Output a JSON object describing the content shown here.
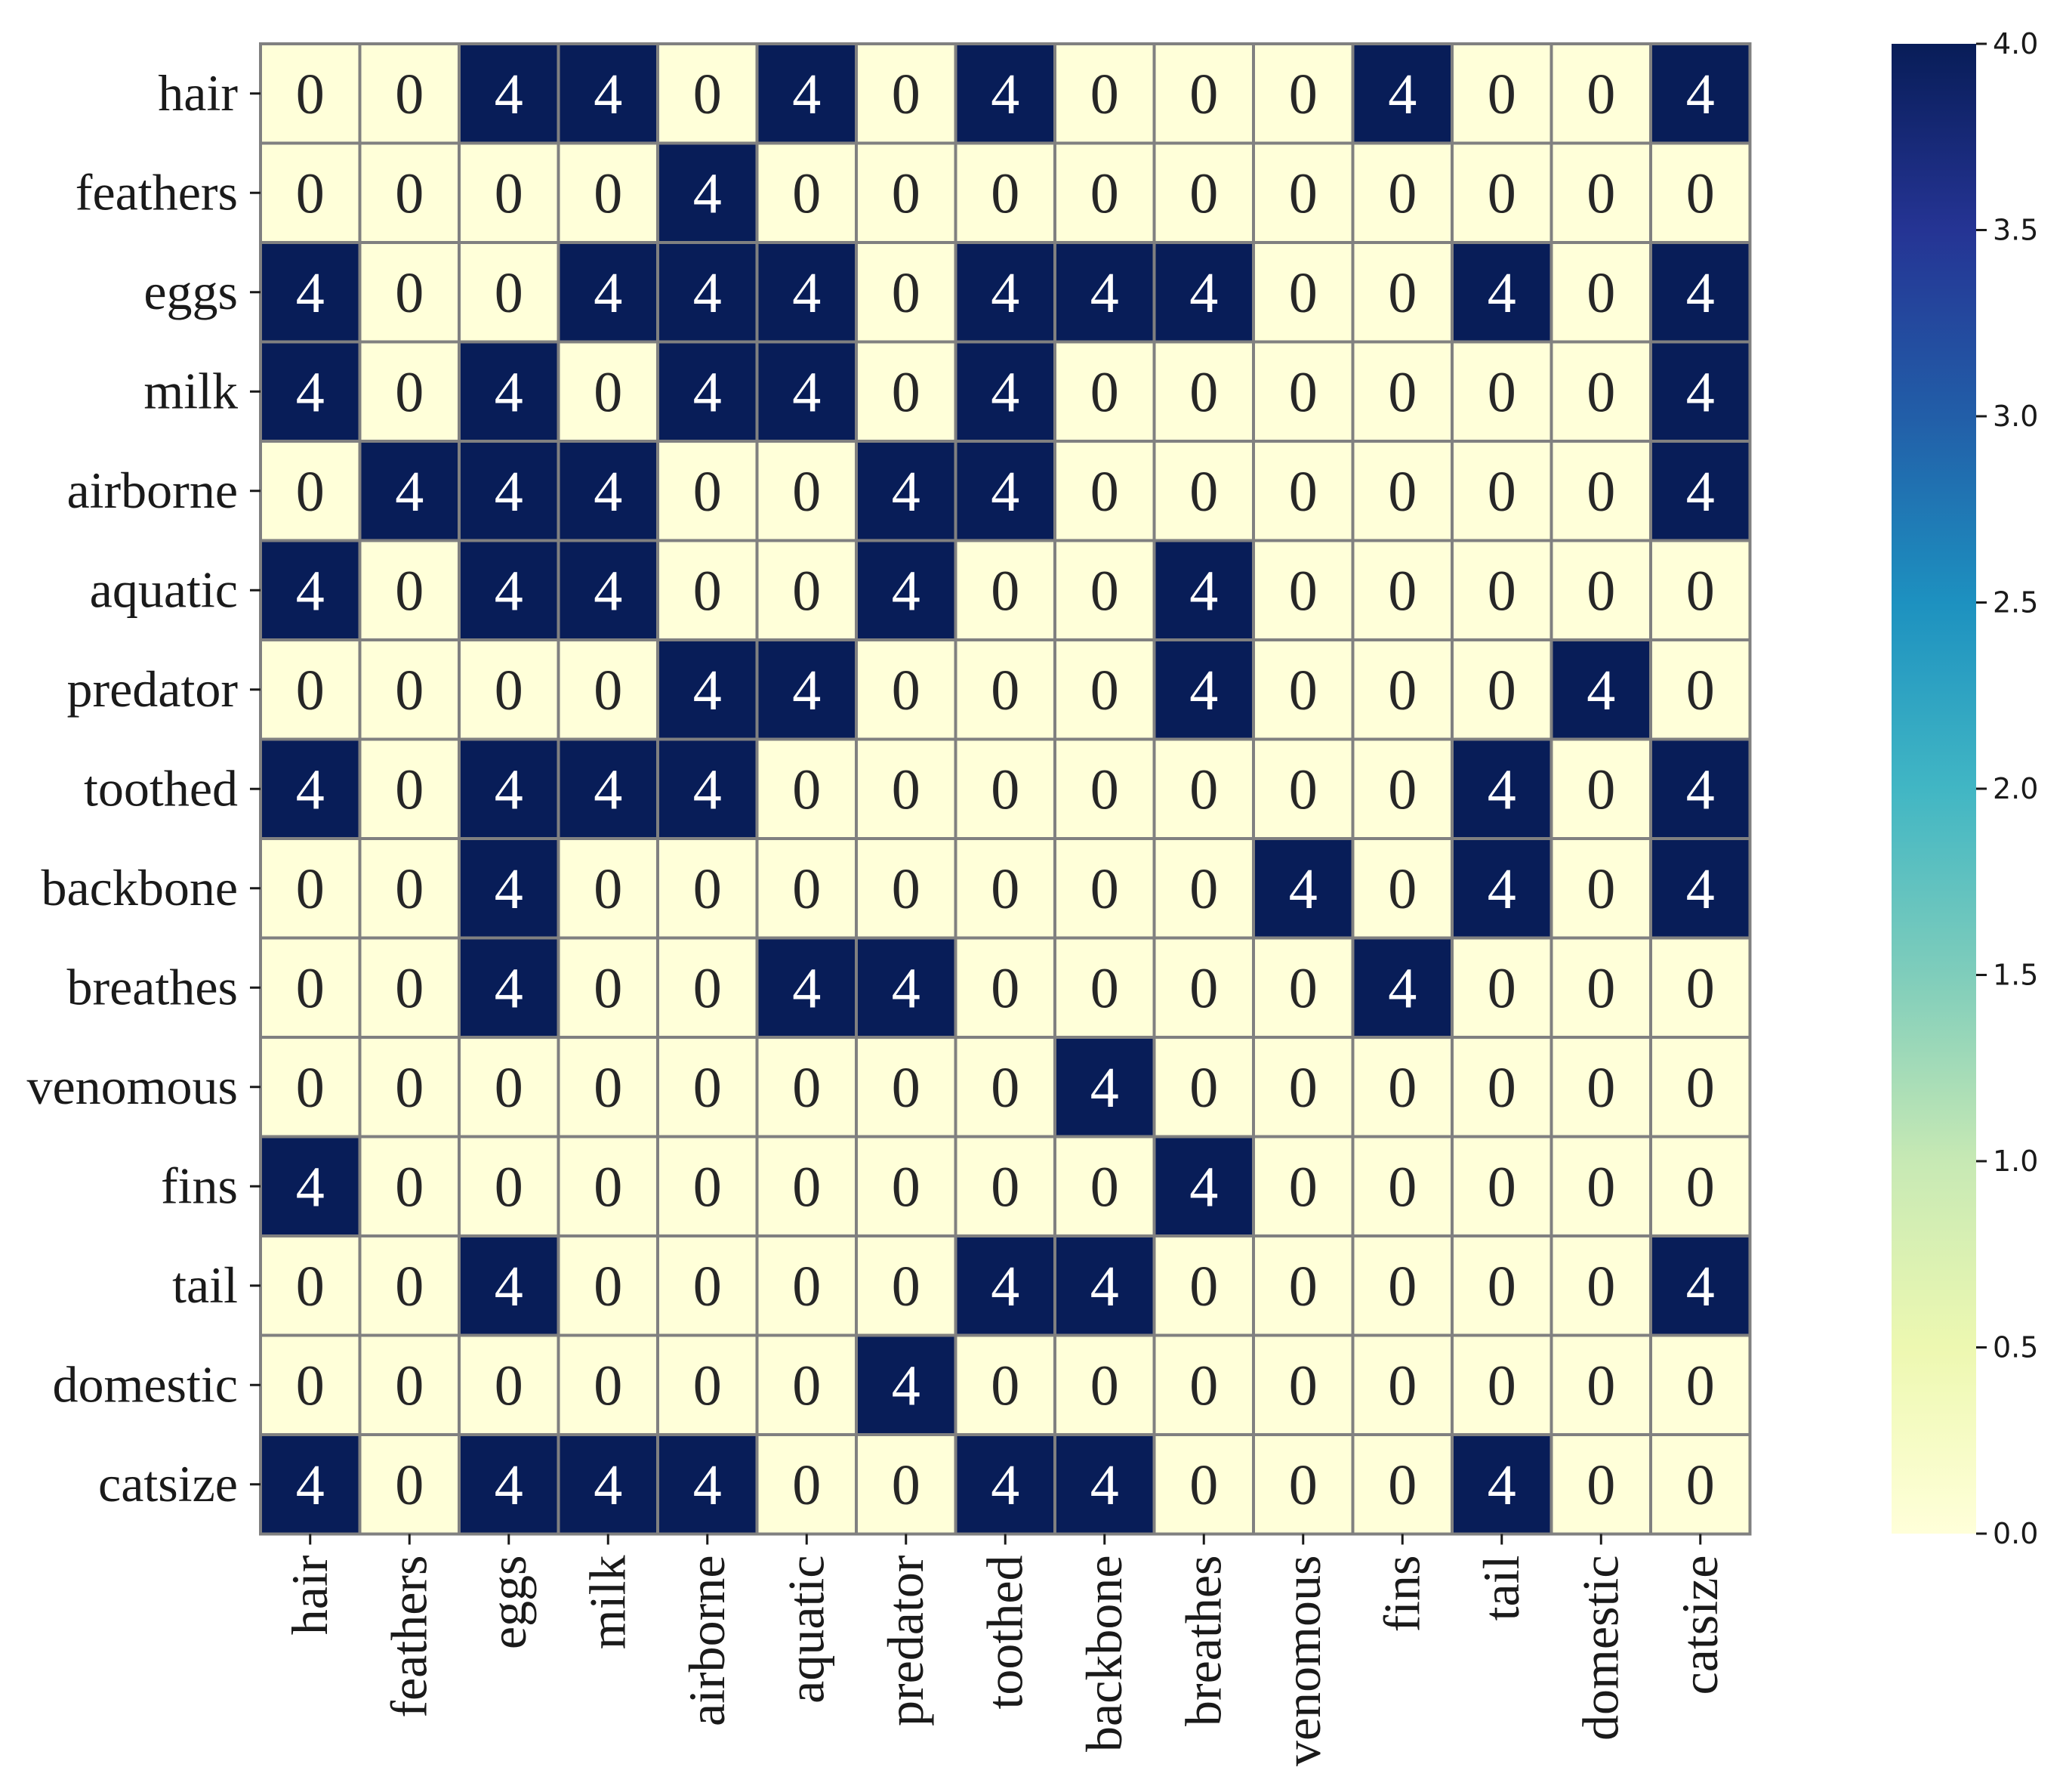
{
  "chart_data": {
    "type": "heatmap",
    "title": "",
    "xlabel": "",
    "ylabel": "",
    "rows": [
      "hair",
      "feathers",
      "eggs",
      "milk",
      "airborne",
      "aquatic",
      "predator",
      "toothed",
      "backbone",
      "breathes",
      "venomous",
      "fins",
      "tail",
      "domestic",
      "catsize"
    ],
    "columns": [
      "hair",
      "feathers",
      "eggs",
      "milk",
      "airborne",
      "aquatic",
      "predator",
      "toothed",
      "backbone",
      "breathes",
      "venomous",
      "fins",
      "tail",
      "domestic",
      "catsize"
    ],
    "values": [
      [
        0,
        0,
        4,
        4,
        0,
        4,
        0,
        4,
        0,
        0,
        0,
        4,
        0,
        0,
        4
      ],
      [
        0,
        0,
        0,
        0,
        4,
        0,
        0,
        0,
        0,
        0,
        0,
        0,
        0,
        0,
        0
      ],
      [
        4,
        0,
        0,
        4,
        4,
        4,
        0,
        4,
        4,
        4,
        0,
        0,
        4,
        0,
        4
      ],
      [
        4,
        0,
        4,
        0,
        4,
        4,
        0,
        4,
        0,
        0,
        0,
        0,
        0,
        0,
        4
      ],
      [
        0,
        4,
        4,
        4,
        0,
        0,
        4,
        4,
        0,
        0,
        0,
        0,
        0,
        0,
        4
      ],
      [
        4,
        0,
        4,
        4,
        0,
        0,
        4,
        0,
        0,
        4,
        0,
        0,
        0,
        0,
        0
      ],
      [
        0,
        0,
        0,
        0,
        4,
        4,
        0,
        0,
        0,
        4,
        0,
        0,
        0,
        4,
        0
      ],
      [
        4,
        0,
        4,
        4,
        4,
        0,
        0,
        0,
        0,
        0,
        0,
        0,
        4,
        0,
        4
      ],
      [
        0,
        0,
        4,
        0,
        0,
        0,
        0,
        0,
        0,
        0,
        4,
        0,
        4,
        0,
        4
      ],
      [
        0,
        0,
        4,
        0,
        0,
        4,
        4,
        0,
        0,
        0,
        0,
        4,
        0,
        0,
        0
      ],
      [
        0,
        0,
        0,
        0,
        0,
        0,
        0,
        0,
        4,
        0,
        0,
        0,
        0,
        0,
        0
      ],
      [
        4,
        0,
        0,
        0,
        0,
        0,
        0,
        0,
        0,
        4,
        0,
        0,
        0,
        0,
        0
      ],
      [
        0,
        0,
        4,
        0,
        0,
        0,
        0,
        4,
        4,
        0,
        0,
        0,
        0,
        0,
        4
      ],
      [
        0,
        0,
        0,
        0,
        0,
        0,
        4,
        0,
        0,
        0,
        0,
        0,
        0,
        0,
        0
      ],
      [
        4,
        0,
        4,
        4,
        4,
        0,
        0,
        4,
        4,
        0,
        0,
        0,
        4,
        0,
        0
      ]
    ],
    "colorbar": {
      "vmin": 0,
      "vmax": 4,
      "ticks": [
        "0.0",
        "0.5",
        "1.0",
        "1.5",
        "2.0",
        "2.5",
        "3.0",
        "3.5",
        "4.0"
      ],
      "colormap": "YlGnBu",
      "colors": [
        "#ffffd9",
        "#edf8b1",
        "#c7e9b4",
        "#7fcdbb",
        "#41b6c4",
        "#1d91c0",
        "#225ea8",
        "#253494",
        "#081d58"
      ]
    },
    "grid": true,
    "cell_border_color": "#808080",
    "legend": "right"
  }
}
